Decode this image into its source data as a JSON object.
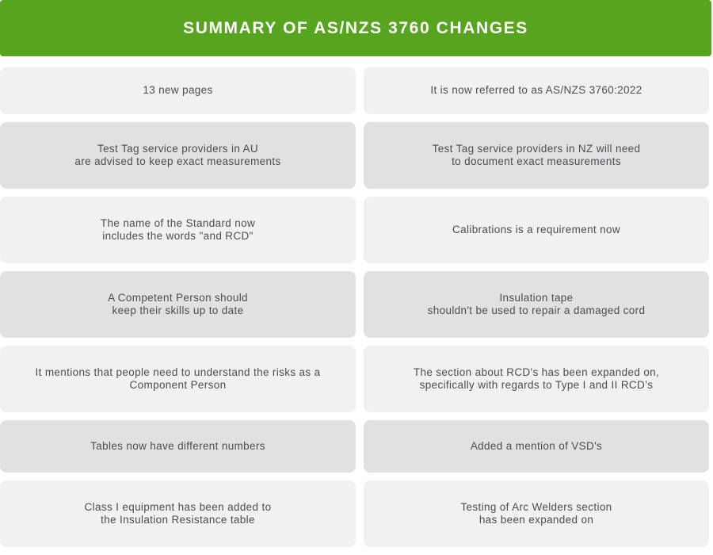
{
  "header": {
    "title": "SUMMARY OF AS/NZS 3760 CHANGES"
  },
  "colors": {
    "header_green": "#57A41E",
    "cell_light": "#F1F1F1",
    "cell_dark": "#E1E1E1",
    "text": "#4D4D51",
    "header_text": "#FFFFFF"
  },
  "grid": {
    "rows": [
      {
        "shade": "light",
        "left": "13 new pages",
        "right": "It is now referred to as AS/NZS 3760:2022"
      },
      {
        "shade": "dark",
        "left": "Test Tag service providers in AU\nare advised to keep exact measurements",
        "right": "Test Tag service providers in NZ will need\nto document exact measurements"
      },
      {
        "shade": "light",
        "left": "The name of the Standard now\nincludes the words \"and RCD\"",
        "right": "Calibrations is a requirement now"
      },
      {
        "shade": "dark",
        "left": "A Competent Person should\nkeep their skills up to date",
        "right": "Insulation tape\nshouldn't be used to repair a damaged cord"
      },
      {
        "shade": "light",
        "left": "It mentions that people need to understand the risks as a\nComponent Person",
        "right": "The section about RCD's has been expanded on,\nspecifically with regards to Type I and II RCD’s"
      },
      {
        "shade": "dark",
        "left": "Tables now have different numbers",
        "right": "Added a mention of VSD's"
      },
      {
        "shade": "light",
        "left": "Class I equipment has been added to\nthe Insulation Resistance table",
        "right": "Testing of Arc Welders section\nhas been expanded on"
      }
    ]
  }
}
